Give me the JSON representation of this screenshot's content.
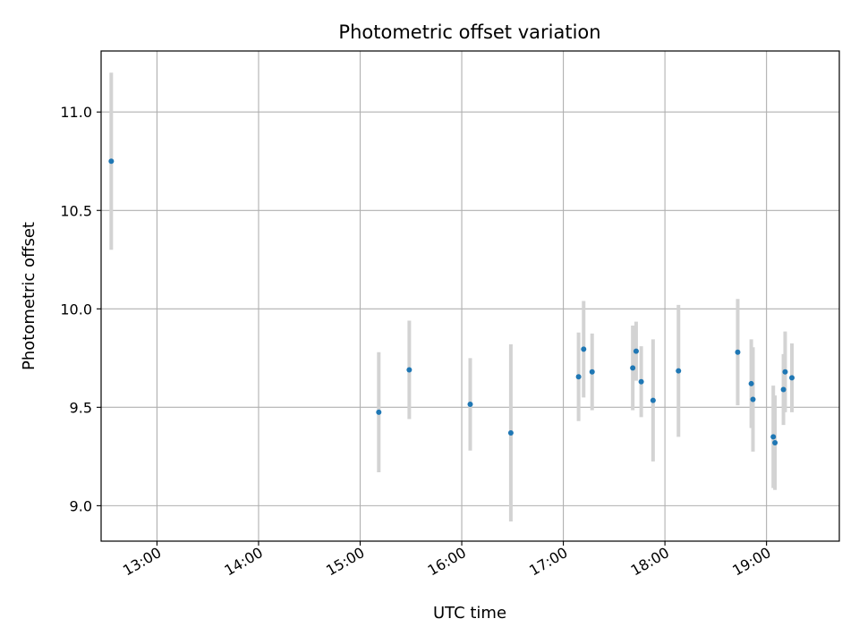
{
  "chart_data": {
    "type": "scatter",
    "title": "Photometric offset variation",
    "xlabel": "UTC time",
    "ylabel": "Photometric offset",
    "x_tick_labels": [
      "13:00",
      "14:00",
      "15:00",
      "16:00",
      "17:00",
      "18:00",
      "19:00"
    ],
    "y_tick_labels": [
      "9.0",
      "9.5",
      "10.0",
      "10.5",
      "11.0"
    ],
    "y_ticks": [
      9.0,
      9.5,
      10.0,
      10.5,
      11.0
    ],
    "xlim": [
      "12:27",
      "19:43"
    ],
    "ylim": [
      8.82,
      11.31
    ],
    "grid": true,
    "marker_color": "#1f77b4",
    "errorbar_color": "#d3d3d3",
    "points": [
      {
        "time": "12:33",
        "value": 10.75,
        "error": 0.45
      },
      {
        "time": "15:11",
        "value": 9.475,
        "error": 0.305
      },
      {
        "time": "15:29",
        "value": 9.69,
        "error": 0.25
      },
      {
        "time": "16:05",
        "value": 9.515,
        "error": 0.235
      },
      {
        "time": "16:29",
        "value": 9.37,
        "error": 0.45
      },
      {
        "time": "17:09",
        "value": 9.655,
        "error": 0.225
      },
      {
        "time": "17:12",
        "value": 9.795,
        "error": 0.245
      },
      {
        "time": "17:17",
        "value": 9.68,
        "error": 0.195
      },
      {
        "time": "17:41",
        "value": 9.7,
        "error": 0.215
      },
      {
        "time": "17:43",
        "value": 9.785,
        "error": 0.15
      },
      {
        "time": "17:46",
        "value": 9.63,
        "error": 0.18
      },
      {
        "time": "17:53",
        "value": 9.535,
        "error": 0.31
      },
      {
        "time": "18:08",
        "value": 9.685,
        "error": 0.335
      },
      {
        "time": "18:43",
        "value": 9.78,
        "error": 0.27
      },
      {
        "time": "18:51",
        "value": 9.62,
        "error": 0.225
      },
      {
        "time": "18:52",
        "value": 9.54,
        "error": 0.265
      },
      {
        "time": "19:04",
        "value": 9.35,
        "error": 0.26
      },
      {
        "time": "19:05",
        "value": 9.32,
        "error": 0.24
      },
      {
        "time": "19:10",
        "value": 9.59,
        "error": 0.18
      },
      {
        "time": "19:11",
        "value": 9.68,
        "error": 0.205
      },
      {
        "time": "19:15",
        "value": 9.65,
        "error": 0.175
      }
    ]
  }
}
